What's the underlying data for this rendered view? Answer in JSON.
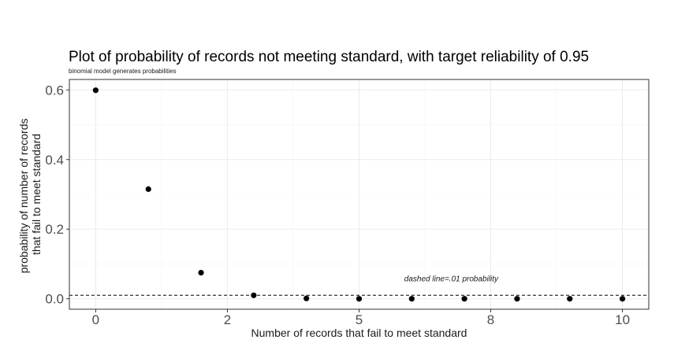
{
  "chart_data": {
    "type": "scatter",
    "title": "Plot of probability of records not meeting standard, with target reliability of 0.95",
    "subtitle": "binomial model generates probabilities",
    "xlabel": "Number of records that fail to meet standard",
    "ylabel_lines": [
      "probability of number of records",
      "that fail to meet standard"
    ],
    "x_tick_labels": [
      "0",
      "2",
      "5",
      "8",
      "10"
    ],
    "y_ticks": [
      0.0,
      0.2,
      0.4,
      0.6
    ],
    "y_tick_labels": [
      "0.0",
      "0.2",
      "0.4",
      "0.6"
    ],
    "xlim": [
      -0.5,
      10.5
    ],
    "ylim": [
      -0.03,
      0.63
    ],
    "grid": true,
    "points": [
      {
        "x": 0,
        "y": 0.599
      },
      {
        "x": 1,
        "y": 0.315
      },
      {
        "x": 2,
        "y": 0.075
      },
      {
        "x": 3,
        "y": 0.01
      },
      {
        "x": 4,
        "y": 0.001
      },
      {
        "x": 5,
        "y": 0.0
      },
      {
        "x": 6,
        "y": 0.0
      },
      {
        "x": 7,
        "y": 0.0
      },
      {
        "x": 8,
        "y": 0.0
      },
      {
        "x": 9,
        "y": 0.0
      },
      {
        "x": 10,
        "y": 0.0
      }
    ],
    "reference_line": {
      "y": 0.01,
      "style": "dashed"
    },
    "annotation": {
      "text": "dashed line=.01 probability",
      "x": 6.75,
      "y": 0.05
    }
  }
}
